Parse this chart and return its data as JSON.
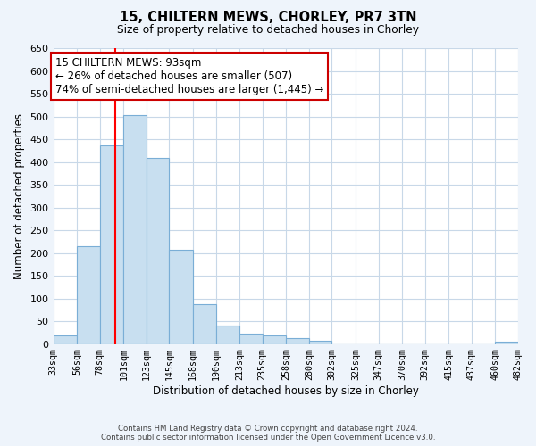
{
  "title": "15, CHILTERN MEWS, CHORLEY, PR7 3TN",
  "subtitle": "Size of property relative to detached houses in Chorley",
  "xlabel": "Distribution of detached houses by size in Chorley",
  "ylabel": "Number of detached properties",
  "bin_edges": [
    33,
    56,
    78,
    101,
    123,
    145,
    168,
    190,
    213,
    235,
    258,
    280,
    302,
    325,
    347,
    370,
    392,
    415,
    437,
    460,
    482
  ],
  "bin_labels": [
    "33sqm",
    "56sqm",
    "78sqm",
    "101sqm",
    "123sqm",
    "145sqm",
    "168sqm",
    "190sqm",
    "213sqm",
    "235sqm",
    "258sqm",
    "280sqm",
    "302sqm",
    "325sqm",
    "347sqm",
    "370sqm",
    "392sqm",
    "415sqm",
    "437sqm",
    "460sqm",
    "482sqm"
  ],
  "counts": [
    18,
    215,
    437,
    503,
    408,
    207,
    88,
    40,
    23,
    19,
    13,
    7,
    0,
    0,
    0,
    0,
    0,
    0,
    0,
    5
  ],
  "bar_color": "#c8dff0",
  "bar_edge_color": "#7aaed6",
  "vline_x": 93,
  "vline_color": "red",
  "ylim": [
    0,
    650
  ],
  "yticks": [
    0,
    50,
    100,
    150,
    200,
    250,
    300,
    350,
    400,
    450,
    500,
    550,
    600,
    650
  ],
  "annotation_title": "15 CHILTERN MEWS: 93sqm",
  "annotation_line1": "← 26% of detached houses are smaller (507)",
  "annotation_line2": "74% of semi-detached houses are larger (1,445) →",
  "footer1": "Contains HM Land Registry data © Crown copyright and database right 2024.",
  "footer2": "Contains public sector information licensed under the Open Government Licence v3.0.",
  "background_color": "#eef4fb",
  "plot_bg_color": "#ffffff",
  "grid_color": "#c8d8e8"
}
